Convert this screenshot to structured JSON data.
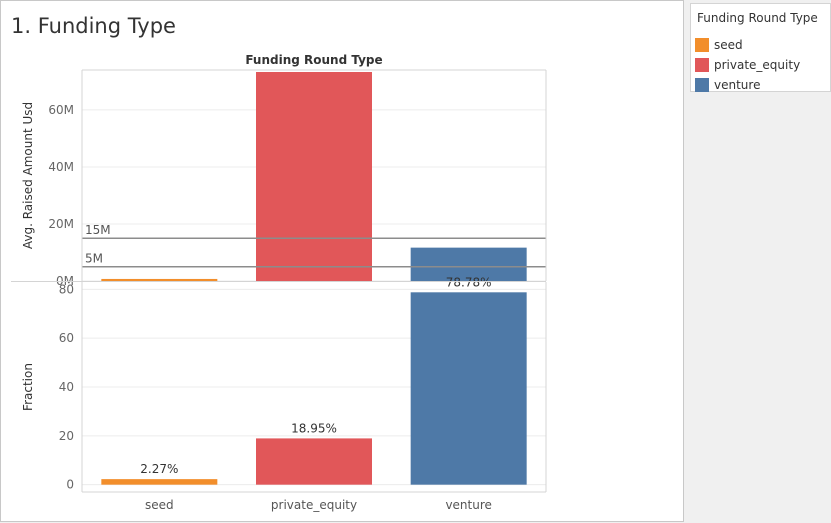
{
  "sheet": {
    "title": "1. Funding Type"
  },
  "legend": {
    "title": "Funding Round Type",
    "items": [
      {
        "label": "seed",
        "color": "#f28e2b"
      },
      {
        "label": "private_equity",
        "color": "#e15759"
      },
      {
        "label": "venture",
        "color": "#4e79a7"
      }
    ]
  },
  "chart_data": {
    "type": "bar",
    "title": "Funding Round Type",
    "xlabel": "",
    "categories": [
      "seed",
      "private_equity",
      "venture"
    ],
    "colors": [
      "#f28e2b",
      "#e15759",
      "#4e79a7"
    ],
    "grid": true,
    "legend_placement": "top-right",
    "panels": [
      {
        "ylabel": "Avg. Raised Amount Usd",
        "values": [
          719000,
          73300000,
          11700000
        ],
        "ylim": [
          0,
          74000000
        ],
        "yticks": [
          0,
          20000000,
          40000000,
          60000000
        ],
        "ytick_labels": [
          "0M",
          "20M",
          "40M",
          "60M"
        ],
        "reference_lines": [
          {
            "value": 15000000,
            "label": "15M"
          },
          {
            "value": 5000000,
            "label": "5M"
          }
        ],
        "data_labels": []
      },
      {
        "ylabel": "Fraction",
        "values": [
          2.27,
          18.95,
          78.78
        ],
        "ylim": [
          -3,
          83
        ],
        "yticks": [
          0,
          20,
          40,
          60,
          80
        ],
        "ytick_labels": [
          "0",
          "20",
          "40",
          "60",
          "80"
        ],
        "reference_lines": [],
        "data_labels": [
          "2.27%",
          "18.95%",
          "78.78%"
        ]
      }
    ]
  }
}
